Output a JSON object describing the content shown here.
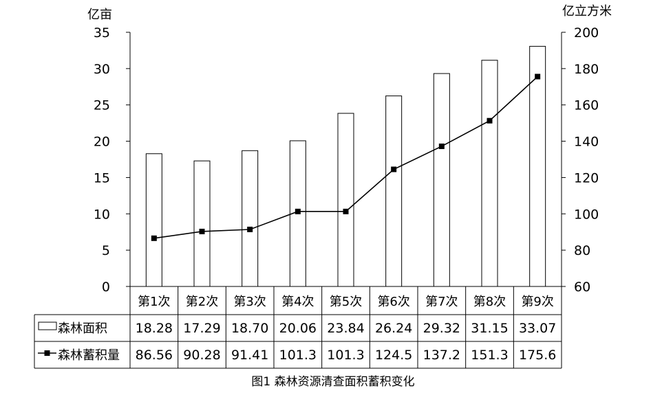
{
  "chart_data": {
    "type": "bar",
    "title": "图1 森林资源清查面积蓄积变化",
    "categories": [
      "第1次",
      "第2次",
      "第3次",
      "第4次",
      "第5次",
      "第6次",
      "第7次",
      "第8次",
      "第9次"
    ],
    "left_axis": {
      "unit": "亿亩",
      "ylim": [
        0,
        35
      ],
      "ticks": [
        "0",
        "5",
        "10",
        "15",
        "20",
        "25",
        "30",
        "35"
      ]
    },
    "right_axis": {
      "unit": "亿立方米",
      "ylim": [
        60,
        200
      ],
      "ticks": [
        "60",
        "80",
        "100",
        "120",
        "140",
        "160",
        "180",
        "200"
      ]
    },
    "series": [
      {
        "name": "森林面积",
        "kind": "bar",
        "axis": "left",
        "values": [
          18.28,
          17.29,
          18.7,
          20.06,
          23.84,
          26.24,
          29.32,
          31.15,
          33.07
        ],
        "labels": [
          "18.28",
          "17.29",
          "18.70",
          "20.06",
          "23.84",
          "26.24",
          "29.32",
          "31.15",
          "33.07"
        ]
      },
      {
        "name": "森林蓄积量",
        "kind": "line",
        "axis": "right",
        "values": [
          86.56,
          90.28,
          91.41,
          101.3,
          101.3,
          124.5,
          137.2,
          151.3,
          175.6
        ],
        "labels": [
          "86.56",
          "90.28",
          "91.41",
          "101.3",
          "101.3",
          "124.5",
          "137.2",
          "151.3",
          "175.6"
        ]
      }
    ],
    "data_table": true,
    "grid": false,
    "colors": {
      "bar_fill": "#ffffff",
      "bar_stroke": "#000000",
      "line": "#000000",
      "marker": "#000000"
    }
  }
}
